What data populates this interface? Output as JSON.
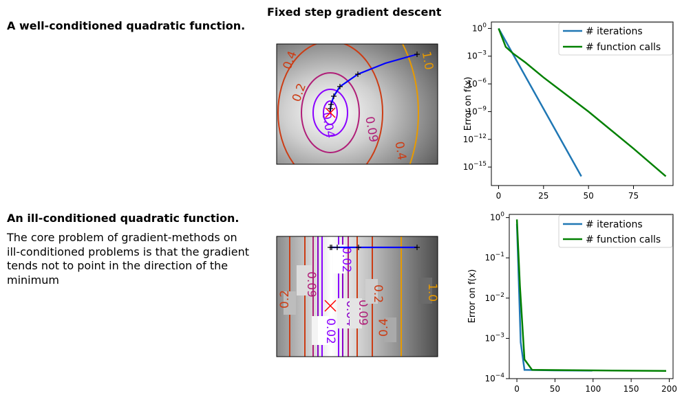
{
  "suptitle": "Fixed step gradient descent",
  "colors": {
    "path": "#0000ff",
    "minimum_marker": "#ff0000",
    "iterations_line": "#1f77b4",
    "function_calls_line": "#008000",
    "contours": [
      "#8a00ff",
      "#8a00c8",
      "#b01e78",
      "#cc3c14",
      "#e89a00"
    ]
  },
  "rows": [
    {
      "title": "A well-conditioned quadratic function.",
      "description": "",
      "contour_plot": {
        "background": "radial-gray",
        "contour_levels": [
          {
            "label": "0.04",
            "color": "#8a00ff"
          },
          {
            "label": "0.09",
            "color": "#b01e78"
          },
          {
            "label": "0.2",
            "color": "#cc3c14"
          },
          {
            "label": "0.4",
            "color": "#cc3c14"
          },
          {
            "label": "1.0",
            "color": "#e89a00"
          }
        ]
      },
      "chart_data": {
        "type": "line",
        "ylabel": "Error on f(x)",
        "yscale": "log",
        "ylim": [
          1e-17,
          5
        ],
        "yticks": [
          "10^0",
          "10^-3",
          "10^-6",
          "10^-9",
          "10^-12",
          "10^-15"
        ],
        "xlim": [
          -4,
          97
        ],
        "xticks": [
          0,
          25,
          50,
          75
        ],
        "legend": "top-right",
        "series": [
          {
            "name": "# iterations",
            "color": "#1f77b4",
            "x": [
              0,
              46
            ],
            "y": [
              1,
              1e-16
            ]
          },
          {
            "name": "# function calls",
            "color": "#008000",
            "x": [
              0,
              2,
              4,
              8,
              15,
              25,
              50,
              75,
              93
            ],
            "y": [
              1,
              0.1,
              0.01,
              0.002,
              0.0002,
              5e-06,
              1e-09,
              1e-13,
              1e-16
            ]
          }
        ]
      }
    },
    {
      "title": "An ill-conditioned quadratic function.",
      "description": "The core problem of gradient-methods on\n ill-conditioned problems is that the gradient\ntends not to point in the direction of the\nminimum",
      "contour_plot": {
        "background": "vertical-gray",
        "contour_levels": [
          {
            "label": "0.02",
            "color": "#8a00ff"
          },
          {
            "label": "0.04",
            "color": "#8a00c8"
          },
          {
            "label": "0.09",
            "color": "#b01e78"
          },
          {
            "label": "0.2",
            "color": "#cc3c14"
          },
          {
            "label": "0.4",
            "color": "#cc3c14"
          },
          {
            "label": "1.0",
            "color": "#e89a00"
          }
        ]
      },
      "chart_data": {
        "type": "line",
        "ylabel": "Error on f(x)",
        "yscale": "log",
        "ylim": [
          0.0001,
          1.2
        ],
        "yticks": [
          "10^0",
          "10^-1",
          "10^-2",
          "10^-3",
          "10^-4"
        ],
        "xlim": [
          -10,
          205
        ],
        "xticks": [
          0,
          50,
          100,
          150,
          200
        ],
        "legend": "top-right",
        "series": [
          {
            "name": "# iterations",
            "color": "#1f77b4",
            "x": [
              0,
              2,
              5,
              10,
              50,
              99
            ],
            "y": [
              0.7,
              0.05,
              0.0008,
              0.000165,
              0.00016,
              0.000158
            ]
          },
          {
            "name": "# function calls",
            "color": "#008000",
            "x": [
              0,
              4,
              10,
              20,
              100,
              196
            ],
            "y": [
              0.9,
              0.02,
              0.0003,
              0.000165,
              0.00016,
              0.000155
            ]
          }
        ]
      }
    }
  ]
}
